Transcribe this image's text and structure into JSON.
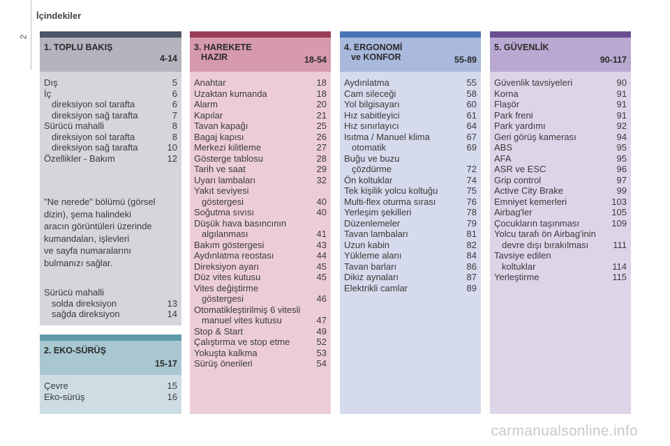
{
  "header": {
    "title": "İçindekiler",
    "page_number": "2"
  },
  "sections": {
    "s1": {
      "title": "1. TOPLU BAKIŞ",
      "range": "4-14",
      "items": [
        {
          "label": "Dış",
          "page": "5"
        },
        {
          "label": "İç",
          "page": "6"
        },
        {
          "label": "direksiyon sol tarafta",
          "page": "6"
        },
        {
          "label": "direksiyon sağ tarafta",
          "page": "7"
        },
        {
          "label": "Sürücü mahalli",
          "page": "8"
        },
        {
          "label": "direksiyon sol tarafta",
          "page": "8"
        },
        {
          "label": "direksiyon sağ tarafta",
          "page": "10"
        },
        {
          "label": "Özellikler - Bakım",
          "page": "12"
        }
      ],
      "note_lines": [
        "\"Ne nerede\" bölümü (görsel",
        "dizin), şema halindeki",
        "aracın görüntüleri üzerinde",
        "kumandaları, işlevleri",
        "ve sayfa numaralarını",
        "bulmanızı sağlar."
      ],
      "items2": [
        {
          "label": "Sürücü mahalli",
          "page": ""
        },
        {
          "label": "solda direksiyon",
          "page": "13"
        },
        {
          "label": "sağda direksiyon",
          "page": "14"
        }
      ]
    },
    "s2": {
      "title": "2. EKO-SÜRÜŞ",
      "range": "15-17",
      "items": [
        {
          "label": "Çevre",
          "page": "15"
        },
        {
          "label": "Eko-sürüş",
          "page": "16"
        }
      ]
    },
    "s3": {
      "title_line1": "3. HAREKETE",
      "title_line2": "HAZIR",
      "range": "18-54",
      "items": [
        {
          "label": "Anahtar",
          "page": "18"
        },
        {
          "label": "Uzaktan kumanda",
          "page": "18"
        },
        {
          "label": "Alarm",
          "page": "20"
        },
        {
          "label": "Kapılar",
          "page": "21"
        },
        {
          "label": "Tavan kapağı",
          "page": "25"
        },
        {
          "label": "Bagaj kapısı",
          "page": "26"
        },
        {
          "label": "Merkezi kilitleme",
          "page": "27"
        },
        {
          "label": "Gösterge tablosu",
          "page": "28"
        },
        {
          "label": "Tarih ve saat",
          "page": "29"
        },
        {
          "label": "Uyarı lambaları",
          "page": "32"
        },
        {
          "label": "Yakıt seviyesi",
          "page": ""
        },
        {
          "label": "göstergesi",
          "page": "40"
        },
        {
          "label": "Soğutma sıvısı",
          "page": "40"
        },
        {
          "label": "Düşük hava basıncının",
          "page": ""
        },
        {
          "label": "algılanması",
          "page": "41"
        },
        {
          "label": "Bakım göstergesi",
          "page": "43"
        },
        {
          "label": "Aydınlatma reostası",
          "page": "44"
        },
        {
          "label": "Direksiyon ayarı",
          "page": "45"
        },
        {
          "label": "Düz vites kutusu",
          "page": "45"
        },
        {
          "label": "Vites değiştirme",
          "page": ""
        },
        {
          "label": "göstergesi",
          "page": "46"
        },
        {
          "label": "Otomatikleştirilmiş 6 vitesli",
          "page": ""
        },
        {
          "label": "manuel vites kutusu",
          "page": "47"
        },
        {
          "label": "Stop & Start",
          "page": "49"
        },
        {
          "label": "Çalıştırma ve stop etme",
          "page": "52"
        },
        {
          "label": "Yokuşta kalkma",
          "page": "53"
        },
        {
          "label": "Sürüş önerileri",
          "page": "54"
        }
      ]
    },
    "s4": {
      "title_line1": "4. ERGONOMİ",
      "title_line2": "ve KONFOR",
      "range": "55-89",
      "items": [
        {
          "label": "Aydınlatma",
          "page": "55"
        },
        {
          "label": "Cam sileceği",
          "page": "58"
        },
        {
          "label": "Yol bilgisayarı",
          "page": "60"
        },
        {
          "label": "Hız sabitleyici",
          "page": "61"
        },
        {
          "label": "Hız sınırlayıcı",
          "page": "64"
        },
        {
          "label": "Isıtma / Manuel klima",
          "page": "67"
        },
        {
          "label": "otomatik",
          "page": "69"
        },
        {
          "label": "Buğu ve buzu",
          "page": ""
        },
        {
          "label": "çözdürme",
          "page": "72"
        },
        {
          "label": "Ön koltuklar",
          "page": "74"
        },
        {
          "label": "Tek kişilik yolcu koltuğu",
          "page": "75"
        },
        {
          "label": "Multi-flex oturma sırası",
          "page": "76"
        },
        {
          "label": "Yerleşim şekilleri",
          "page": "78"
        },
        {
          "label": "Düzenlemeler",
          "page": "79"
        },
        {
          "label": "Tavan lambaları",
          "page": "81"
        },
        {
          "label": "Uzun kabin",
          "page": "82"
        },
        {
          "label": "Yükleme alanı",
          "page": "84"
        },
        {
          "label": "Tavan barları",
          "page": "86"
        },
        {
          "label": "Dikiz aynaları",
          "page": "87"
        },
        {
          "label": "Elektrikli camlar",
          "page": "89"
        }
      ]
    },
    "s5": {
      "title": "5. GÜVENLİK",
      "range": "90-117",
      "items": [
        {
          "label": "Güvenlik tavsiyeleri",
          "page": "90"
        },
        {
          "label": "Korna",
          "page": "91"
        },
        {
          "label": "Flaşör",
          "page": "91"
        },
        {
          "label": "Park freni",
          "page": "91"
        },
        {
          "label": "Park yardımı",
          "page": "92"
        },
        {
          "label": "Geri görüş kamerası",
          "page": "94"
        },
        {
          "label": "ABS",
          "page": "95"
        },
        {
          "label": "AFA",
          "page": "95"
        },
        {
          "label": "ASR ve ESC",
          "page": "96"
        },
        {
          "label": "Grip control",
          "page": "97"
        },
        {
          "label": "Active City Brake",
          "page": "99"
        },
        {
          "label": "Emniyet kemerleri",
          "page": "103"
        },
        {
          "label": "Airbag'ler",
          "page": "105"
        },
        {
          "label": "Çocukların taşınması",
          "page": "109"
        },
        {
          "label": "Yolcu tarafı ön Airbag'inin",
          "page": ""
        },
        {
          "label": "devre dışı bırakılması",
          "page": "111"
        },
        {
          "label": "Tavsiye edilen",
          "page": ""
        },
        {
          "label": "koltuklar",
          "page": "114"
        },
        {
          "label": "Yerleştirme",
          "page": "115"
        }
      ]
    }
  },
  "watermark": "carmanualsonline.info"
}
